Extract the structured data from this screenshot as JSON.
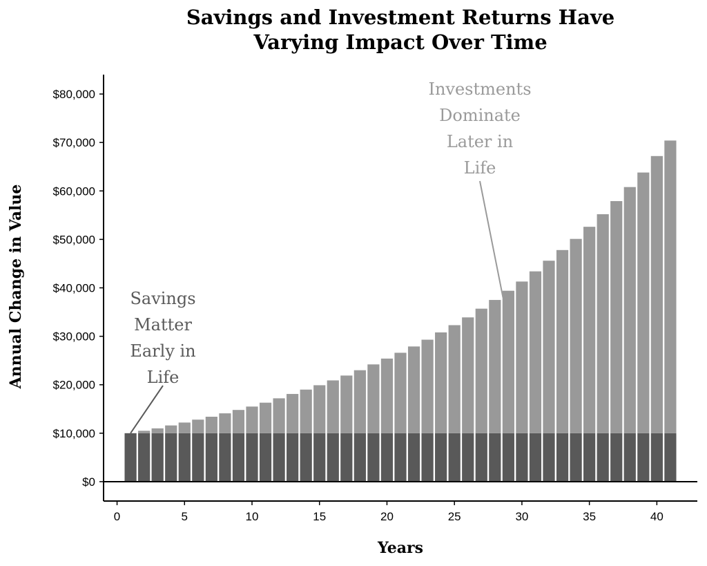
{
  "title_lines": [
    "Savings and Investment Returns Have",
    "Varying Impact Over Time"
  ],
  "chart_data": {
    "type": "bar",
    "stacked": true,
    "title": "Savings and Investment Returns Have Varying Impact Over Time",
    "xlabel": "Years",
    "ylabel": "Annual Change in Value",
    "xlim": [
      -1,
      43
    ],
    "ylim": [
      -4000,
      84000
    ],
    "x_ticks": [
      0,
      5,
      10,
      15,
      20,
      25,
      30,
      35,
      40
    ],
    "y_ticks": [
      0,
      10000,
      20000,
      30000,
      40000,
      50000,
      60000,
      70000,
      80000
    ],
    "y_tick_labels": [
      "$0",
      "$10,000",
      "$20,000",
      "$30,000",
      "$40,000",
      "$50,000",
      "$60,000",
      "$70,000",
      "$80,000"
    ],
    "grid": false,
    "legend": "none",
    "x": [
      1,
      2,
      3,
      4,
      5,
      6,
      7,
      8,
      9,
      10,
      11,
      12,
      13,
      14,
      15,
      16,
      17,
      18,
      19,
      20,
      21,
      22,
      23,
      24,
      25,
      26,
      27,
      28,
      29,
      30,
      31,
      32,
      33,
      34,
      35,
      36,
      37,
      38,
      39,
      40,
      41
    ],
    "series": [
      {
        "color": "#595959",
        "values": [
          10000,
          10000,
          10000,
          10000,
          10000,
          10000,
          10000,
          10000,
          10000,
          10000,
          10000,
          10000,
          10000,
          10000,
          10000,
          10000,
          10000,
          10000,
          10000,
          10000,
          10000,
          10000,
          10000,
          10000,
          10000,
          10000,
          10000,
          10000,
          10000,
          10000,
          10000,
          10000,
          10000,
          10000,
          10000,
          10000,
          10000,
          10000,
          10000,
          10000,
          10000
        ]
      },
      {
        "color": "#999999",
        "values": [
          0,
          500,
          1000,
          1600,
          2200,
          2800,
          3400,
          4100,
          4800,
          5500,
          6300,
          7200,
          8100,
          9000,
          9900,
          10900,
          11900,
          13000,
          14200,
          15400,
          16600,
          17900,
          19300,
          20800,
          22300,
          23900,
          25700,
          27500,
          29400,
          31300,
          33400,
          35600,
          37800,
          40100,
          42600,
          45200,
          47900,
          50800,
          53800,
          57200,
          60400
        ]
      }
    ],
    "annotations": [
      {
        "lines": [
          "Savings",
          "Matter",
          "Early in",
          "Life"
        ],
        "color": "#5a5a5a",
        "target_x": 1,
        "target_y": 10000
      },
      {
        "lines": [
          "Investments",
          "Dominate",
          "Later in",
          "Life"
        ],
        "color": "#9a9a9a",
        "target_x": 28.6,
        "target_y": 38000
      }
    ]
  }
}
